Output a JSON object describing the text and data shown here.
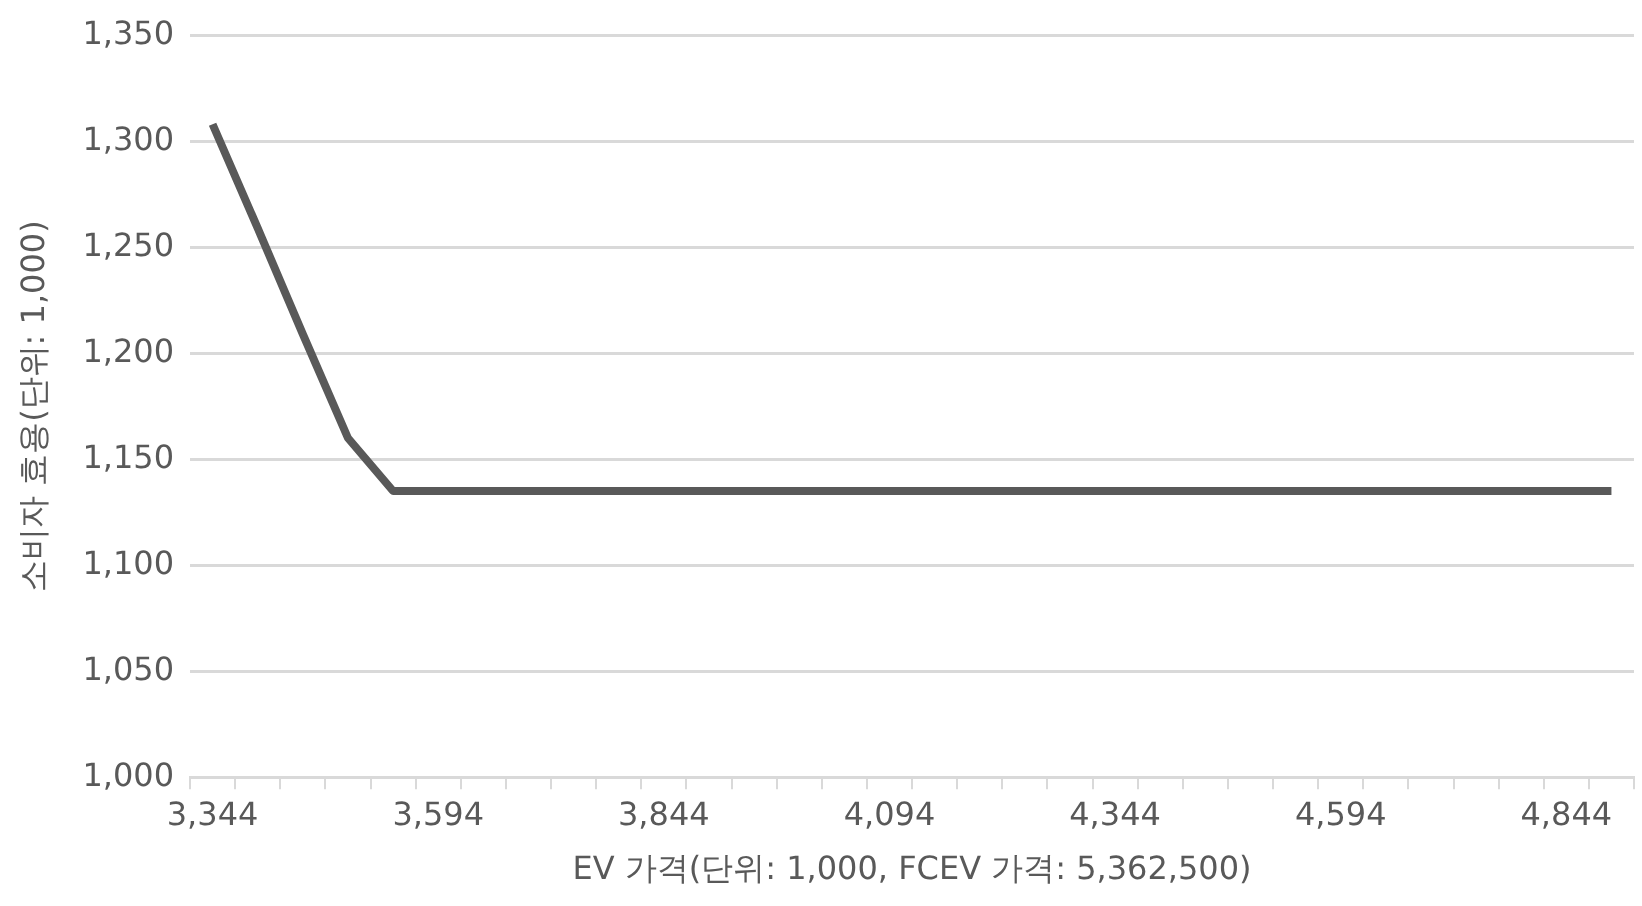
{
  "chart_data": {
    "type": "line",
    "xlabel": "EV 가격(단위: 1,000, FCEV 가격: 5,362,500)",
    "ylabel": "소비자 효용(단위: 1,000)",
    "categories": [
      "3,344",
      null,
      null,
      null,
      null,
      "3,594",
      null,
      null,
      null,
      null,
      "3,844",
      null,
      null,
      null,
      null,
      "4,094",
      null,
      null,
      null,
      null,
      "4,344",
      null,
      null,
      null,
      null,
      "4,594",
      null,
      null,
      null,
      null,
      "4,844",
      null
    ],
    "series": [
      {
        "color": "#595959",
        "values": [
          1308,
          1259,
          1209,
          1160,
          1135,
          1135,
          1135,
          1135,
          1135,
          1135,
          1135,
          1135,
          1135,
          1135,
          1135,
          1135,
          1135,
          1135,
          1135,
          1135,
          1135,
          1135,
          1135,
          1135,
          1135,
          1135,
          1135,
          1135,
          1135,
          1135,
          1135,
          1135
        ]
      }
    ],
    "ylim": [
      1000,
      1350
    ],
    "yticks": [
      {
        "value": 1000,
        "label": "1,000"
      },
      {
        "value": 1050,
        "label": "1,050"
      },
      {
        "value": 1100,
        "label": "1,100"
      },
      {
        "value": 1150,
        "label": "1,150"
      },
      {
        "value": 1200,
        "label": "1,200"
      },
      {
        "value": 1250,
        "label": "1,250"
      },
      {
        "value": 1300,
        "label": "1,300"
      },
      {
        "value": 1350,
        "label": "1,350"
      }
    ],
    "grid": "y",
    "legend": false,
    "marker": "none",
    "line_style": "solid"
  }
}
